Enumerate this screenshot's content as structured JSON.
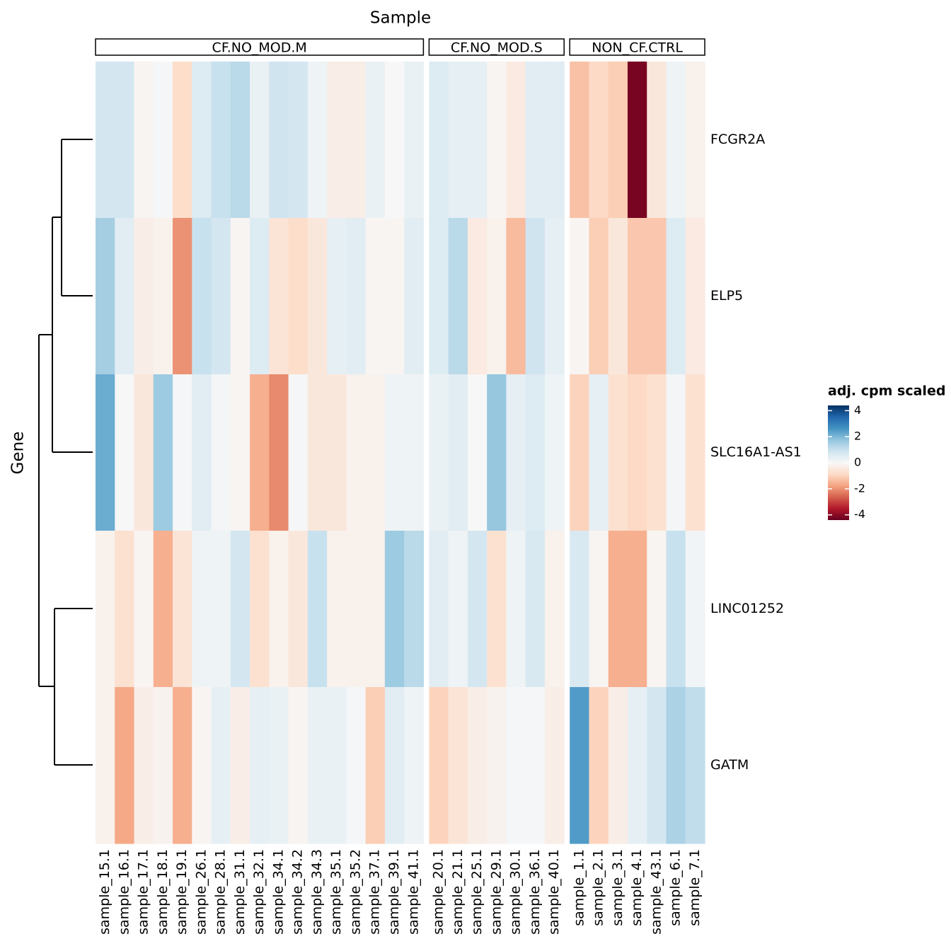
{
  "chart_data": {
    "type": "heatmap",
    "title": "Sample",
    "y_label": "Gene",
    "groups": [
      {
        "name": "CF.NO_MOD.M",
        "columns": [
          "sample_15.1",
          "sample_16.1",
          "sample_17.1",
          "sample_18.1",
          "sample_19.1",
          "sample_26.1",
          "sample_28.1",
          "sample_31.1",
          "sample_32.1",
          "sample_34.1",
          "sample_34.2",
          "sample_34.3",
          "sample_35.1",
          "sample_35.2",
          "sample_37.1",
          "sample_39.1",
          "sample_41.1"
        ]
      },
      {
        "name": "CF.NO_MOD.S",
        "columns": [
          "sample_20.1",
          "sample_21.1",
          "sample_25.1",
          "sample_29.1",
          "sample_30.1",
          "sample_36.1",
          "sample_40.1"
        ]
      },
      {
        "name": "NON_CF.CTRL",
        "columns": [
          "sample_1.1",
          "sample_2.1",
          "sample_3.1",
          "sample_4.1",
          "sample_43.1",
          "sample_6.1",
          "sample_7.1"
        ]
      }
    ],
    "series": [
      {
        "name": "FCGR2A",
        "values": [
          0.8,
          0.8,
          -0.1,
          0.05,
          -0.8,
          0.6,
          1.0,
          1.2,
          0.3,
          0.9,
          0.8,
          0.2,
          -0.3,
          -0.3,
          0.3,
          0,
          0.3,
          0.6,
          0.4,
          0.4,
          -0.1,
          -0.4,
          0.5,
          0.5,
          -1.3,
          -0.9,
          -1.1,
          -4.2,
          -0.5,
          0.2,
          -0.2
        ]
      },
      {
        "name": "ELP5",
        "values": [
          1.5,
          0.5,
          -0.3,
          -0.2,
          -2.0,
          1.0,
          0.8,
          -0.1,
          0.6,
          -0.6,
          -0.8,
          -0.5,
          0.4,
          0.5,
          -0.1,
          -0.1,
          0.5,
          0.6,
          1.2,
          -0.4,
          -0.2,
          -1.4,
          0.9,
          0.4,
          -0.1,
          -1.1,
          -0.5,
          -1.2,
          -1.2,
          0.6,
          -0.4
        ]
      },
      {
        "name": "SLC16A1-AS1",
        "values": [
          2.2,
          0.0,
          -0.5,
          1.6,
          0.05,
          0.5,
          0.1,
          -0.1,
          -1.6,
          -2.1,
          0.05,
          -0.5,
          -0.5,
          -0.2,
          -0.2,
          0.2,
          0.2,
          0.3,
          0.5,
          0.0,
          1.7,
          0.4,
          0.6,
          0.2,
          -1.0,
          0.4,
          -0.7,
          -0.9,
          -0.7,
          0.1,
          -0.7
        ]
      },
      {
        "name": "LINC01252",
        "values": [
          -0.2,
          -0.7,
          -0.1,
          -1.6,
          -0.6,
          0.2,
          0.2,
          0.8,
          -0.7,
          -0.2,
          -0.5,
          1.0,
          -0.2,
          -0.2,
          -0.2,
          1.6,
          1.2,
          0.5,
          0.2,
          0.8,
          -0.7,
          0.2,
          0.7,
          -0.2,
          0.7,
          -0.1,
          -1.6,
          -1.6,
          -0.1,
          1.0,
          0.15
        ]
      },
      {
        "name": "GATM",
        "values": [
          -0.2,
          -1.7,
          -0.3,
          -0.15,
          -1.6,
          -0.1,
          0.4,
          -0.3,
          0.4,
          0.3,
          -0.1,
          0.3,
          0.3,
          0.05,
          -1.1,
          0.5,
          0.2,
          -1.0,
          -0.6,
          -0.3,
          -0.15,
          0.05,
          0.05,
          -0.3,
          2.5,
          -1.0,
          -0.3,
          0.4,
          0.8,
          1.4,
          1.1
        ]
      }
    ],
    "colorbar": {
      "title": "adj. cpm scaled",
      "lim": [
        -4.4,
        4.4
      ],
      "ticks": [
        4,
        2,
        0,
        -2,
        -4
      ],
      "palette": [
        "#67001f",
        "#b2182b",
        "#d6604d",
        "#f4a582",
        "#fddbc7",
        "#f7f7f7",
        "#d1e5f0",
        "#92c5de",
        "#4393c3",
        "#2166ac",
        "#053061"
      ]
    }
  }
}
